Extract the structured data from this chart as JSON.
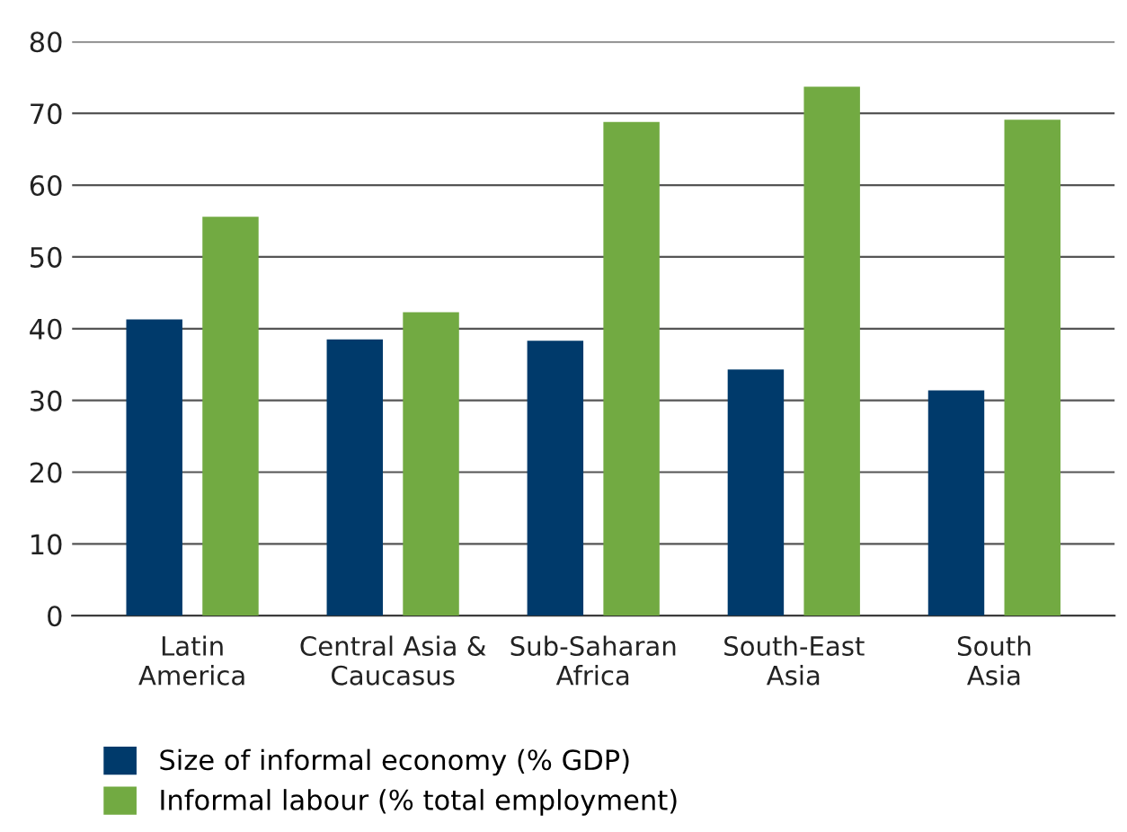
{
  "chart_data": {
    "type": "bar",
    "categories": [
      "Latin\nAmerica",
      "Central Asia &\nCaucasus",
      "Sub-Saharan\nAfrica",
      "South-East\nAsia",
      "South\nAsia"
    ],
    "series": [
      {
        "name": "Size of informal economy (% GDP)",
        "color": "#003a6b",
        "values": [
          41.3,
          38.5,
          38.3,
          34.3,
          31.4
        ]
      },
      {
        "name": "Informal labour (% total employment)",
        "color": "#72aa42",
        "values": [
          55.6,
          42.3,
          68.8,
          73.7,
          69.1
        ]
      }
    ],
    "ylim": [
      0,
      80
    ],
    "yticks": [
      0,
      10,
      20,
      30,
      40,
      50,
      60,
      70,
      80
    ],
    "grid": "y",
    "legend": "bottom left"
  }
}
